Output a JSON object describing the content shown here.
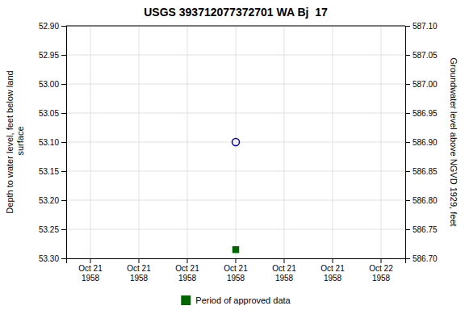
{
  "chart_data": {
    "type": "scatter",
    "title": "USGS 393712077372701 WA Bj  17",
    "y_label": "Depth to water level, feet below land\n surface",
    "y2_label": "Groundwater level above NGVD 1929, feet",
    "categories": [
      "Oct 21\n1958",
      "Oct 21\n1958",
      "Oct 21\n1958",
      "Oct 21\n1958",
      "Oct 21\n1958",
      "Oct 21\n1958",
      "Oct 22\n1958"
    ],
    "series": [
      {
        "color": "#0000bb",
        "marker": "circle-open",
        "values": [
          null,
          null,
          null,
          53.1,
          null,
          null,
          null
        ]
      },
      {
        "name": "Period of approved data",
        "color": "#006600",
        "marker": "square",
        "values": [
          null,
          null,
          null,
          53.285,
          null,
          null,
          null
        ]
      }
    ],
    "ylim": [
      53.3,
      52.9
    ],
    "yticks": [
      {
        "value": 52.9,
        "label": "52.90"
      },
      {
        "value": 52.95,
        "label": "52.95"
      },
      {
        "value": 53.0,
        "label": "53.00"
      },
      {
        "value": 53.05,
        "label": "53.05"
      },
      {
        "value": 53.1,
        "label": "53.10"
      },
      {
        "value": 53.15,
        "label": "53.15"
      },
      {
        "value": 53.2,
        "label": "53.20"
      },
      {
        "value": 53.25,
        "label": "53.25"
      },
      {
        "value": 53.3,
        "label": "53.30"
      }
    ],
    "y2lim": [
      586.7,
      587.1
    ],
    "y2ticks": [
      {
        "value": 587.1,
        "label": "587.10"
      },
      {
        "value": 587.05,
        "label": "587.05"
      },
      {
        "value": 587.0,
        "label": "587.00"
      },
      {
        "value": 586.95,
        "label": "586.95"
      },
      {
        "value": 586.9,
        "label": "586.90"
      },
      {
        "value": 586.85,
        "label": "586.85"
      },
      {
        "value": 586.8,
        "label": "586.80"
      },
      {
        "value": 586.75,
        "label": "586.75"
      },
      {
        "value": 586.7,
        "label": "586.70"
      }
    ],
    "grid": true,
    "legend": "bottom"
  }
}
